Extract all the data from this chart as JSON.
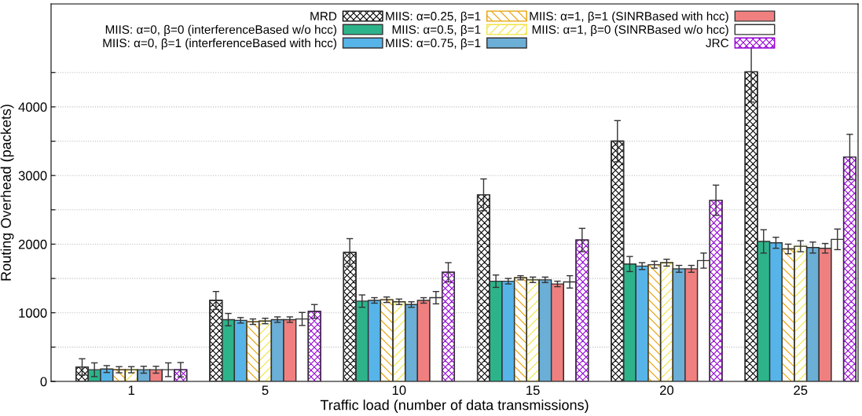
{
  "chart_data": {
    "type": "bar",
    "xlabel": "Traffic load (number of data transmissions)",
    "ylabel": "Routing Overhead (packets)",
    "categories": [
      "1",
      "5",
      "10",
      "15",
      "20",
      "25"
    ],
    "ylim": [
      0,
      5500
    ],
    "yticks": [
      0,
      {
        "value": 500,
        "label": null
      },
      1000,
      {
        "value": 1500,
        "label": null
      },
      2000,
      {
        "value": 2500,
        "label": null
      },
      3000,
      {
        "value": 3500,
        "label": null
      },
      4000,
      {
        "value": 4500,
        "label": null
      }
    ],
    "grid": "y",
    "legend": "top",
    "series": [
      {
        "name": "MRD",
        "color": "#000000",
        "values": [
          210,
          1180,
          1880,
          2720,
          3500,
          4510
        ],
        "errors": [
          120,
          130,
          200,
          230,
          300,
          440
        ]
      },
      {
        "name": "MIIS: α=0, β=0 (interferenceBased w/o hcc)",
        "color": "#2db38a",
        "values": [
          170,
          900,
          1170,
          1460,
          1710,
          2040
        ],
        "errors": [
          100,
          90,
          90,
          90,
          110,
          170
        ]
      },
      {
        "name": "MIIS: α=0, β=1 (interferenceBased with hcc)",
        "color": "#56b4e9",
        "values": [
          180,
          890,
          1180,
          1460,
          1680,
          2020
        ],
        "errors": [
          50,
          40,
          40,
          40,
          50,
          80
        ]
      },
      {
        "name": "MIIS: α=0.25, β=1",
        "color": "#e69f00",
        "values": [
          170,
          870,
          1190,
          1510,
          1700,
          1930
        ],
        "errors": [
          45,
          40,
          40,
          30,
          50,
          70
        ]
      },
      {
        "name": "MIIS: α=0.5, β=1",
        "color": "#f0e442",
        "values": [
          170,
          880,
          1160,
          1480,
          1730,
          1970
        ],
        "errors": [
          45,
          40,
          40,
          40,
          50,
          80
        ]
      },
      {
        "name": "MIIS: α=0.75, β=1",
        "color": "#6baed6",
        "values": [
          170,
          900,
          1120,
          1480,
          1640,
          1950
        ],
        "errors": [
          50,
          40,
          40,
          40,
          50,
          80
        ]
      },
      {
        "name": "MIIS: α=1, β=1 (SINRBased with hcc)",
        "color": "#f08080",
        "values": [
          170,
          900,
          1180,
          1420,
          1640,
          1940
        ],
        "errors": [
          50,
          40,
          40,
          40,
          50,
          70
        ]
      },
      {
        "name": "MIIS: α=1, β=0 (SINRBased w/o hcc)",
        "color": "#ffffff",
        "values": [
          170,
          910,
          1220,
          1450,
          1760,
          2070
        ],
        "errors": [
          100,
          95,
          90,
          90,
          110,
          150
        ]
      },
      {
        "name": "JRC",
        "color": "#9400d3",
        "values": [
          170,
          1020,
          1590,
          2060,
          2640,
          3270
        ],
        "errors": [
          105,
          100,
          140,
          170,
          220,
          330
        ]
      }
    ]
  }
}
